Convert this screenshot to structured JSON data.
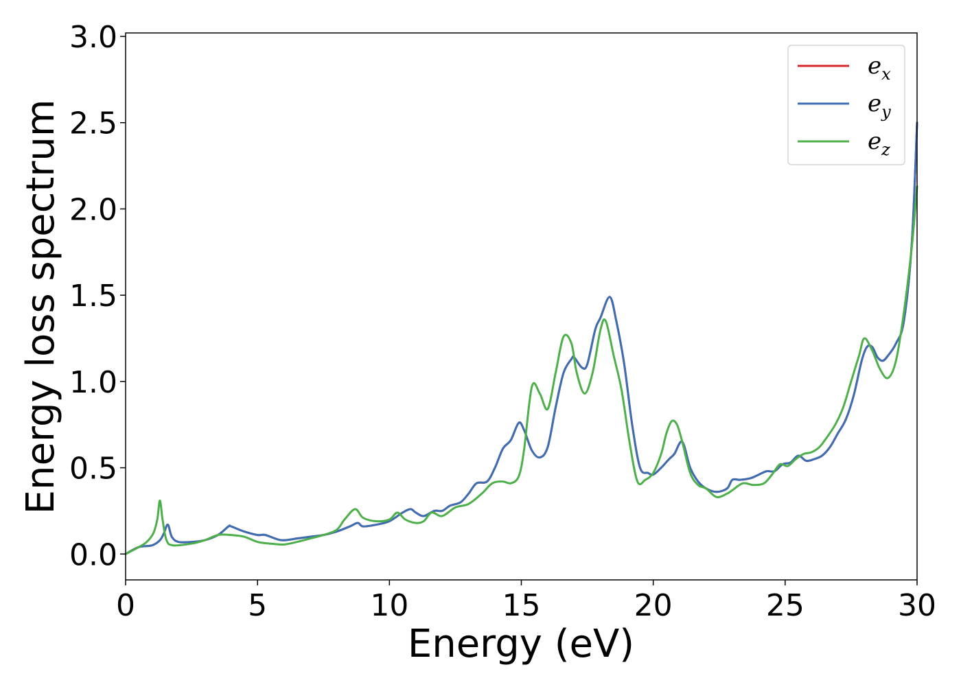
{
  "chart_data": {
    "type": "line",
    "title": "",
    "xlabel": "Energy (eV)",
    "ylabel": "Energy loss spectrum",
    "xlim": [
      0,
      30
    ],
    "ylim": [
      -0.15,
      3.02
    ],
    "xticks": [
      0,
      5,
      10,
      15,
      20,
      25,
      30
    ],
    "xtick_labels": [
      "0",
      "5",
      "10",
      "15",
      "20",
      "25",
      "30"
    ],
    "yticks": [
      0.0,
      0.5,
      1.0,
      1.5,
      2.0,
      2.5,
      3.0
    ],
    "ytick_labels": [
      "0.0",
      "0.5",
      "1.0",
      "1.5",
      "2.0",
      "2.5",
      "3.0"
    ],
    "grid": false,
    "legend_position": "top-right",
    "series": [
      {
        "name": "e_x",
        "legend_base": "e",
        "legend_sub": "x",
        "color": "#d62728",
        "x": [
          0,
          0.5,
          1.0,
          1.3,
          1.45,
          1.6,
          1.75,
          2.0,
          2.5,
          3.0,
          3.5,
          3.9,
          4.0,
          4.5,
          5.0,
          5.3,
          5.9,
          6.5,
          7.0,
          7.5,
          8.0,
          8.5,
          8.8,
          9.0,
          9.5,
          10.0,
          10.5,
          10.8,
          11.0,
          11.3,
          11.7,
          12.0,
          12.3,
          12.7,
          13.0,
          13.3,
          13.7,
          14.0,
          14.3,
          14.6,
          14.9,
          15.1,
          15.4,
          15.7,
          16.0,
          16.3,
          16.6,
          16.9,
          17.0,
          17.3,
          17.5,
          17.8,
          18.0,
          18.35,
          18.6,
          18.9,
          19.2,
          19.5,
          19.8,
          20.0,
          20.3,
          20.6,
          20.8,
          21.1,
          21.4,
          21.7,
          22.0,
          22.4,
          22.8,
          23.0,
          23.3,
          23.7,
          24.0,
          24.3,
          24.6,
          24.9,
          25.2,
          25.5,
          25.8,
          26.1,
          26.4,
          26.7,
          27.0,
          27.3,
          27.6,
          27.9,
          28.1,
          28.3,
          28.5,
          28.7,
          28.9,
          29.2,
          29.5,
          29.8,
          30.0
        ],
        "y": [
          0.0,
          0.04,
          0.05,
          0.08,
          0.12,
          0.17,
          0.1,
          0.07,
          0.07,
          0.08,
          0.11,
          0.16,
          0.16,
          0.13,
          0.11,
          0.11,
          0.08,
          0.09,
          0.1,
          0.11,
          0.13,
          0.16,
          0.18,
          0.16,
          0.17,
          0.19,
          0.24,
          0.26,
          0.24,
          0.22,
          0.25,
          0.25,
          0.28,
          0.3,
          0.35,
          0.41,
          0.42,
          0.5,
          0.61,
          0.66,
          0.76,
          0.72,
          0.6,
          0.56,
          0.62,
          0.85,
          1.05,
          1.13,
          1.14,
          1.08,
          1.1,
          1.3,
          1.37,
          1.49,
          1.35,
          1.1,
          0.75,
          0.5,
          0.47,
          0.46,
          0.5,
          0.55,
          0.58,
          0.65,
          0.5,
          0.42,
          0.38,
          0.36,
          0.38,
          0.43,
          0.43,
          0.44,
          0.46,
          0.48,
          0.48,
          0.52,
          0.53,
          0.57,
          0.54,
          0.55,
          0.57,
          0.62,
          0.7,
          0.78,
          0.92,
          1.12,
          1.2,
          1.2,
          1.14,
          1.12,
          1.15,
          1.22,
          1.35,
          1.8,
          2.5
        ]
      },
      {
        "name": "e_y",
        "legend_base": "e",
        "legend_sub": "y",
        "color": "#3c6eb4",
        "x": [
          0,
          0.5,
          1.0,
          1.3,
          1.45,
          1.6,
          1.75,
          2.0,
          2.5,
          3.0,
          3.5,
          3.9,
          4.0,
          4.5,
          5.0,
          5.3,
          5.9,
          6.5,
          7.0,
          7.5,
          8.0,
          8.5,
          8.8,
          9.0,
          9.5,
          10.0,
          10.5,
          10.8,
          11.0,
          11.3,
          11.7,
          12.0,
          12.3,
          12.7,
          13.0,
          13.3,
          13.7,
          14.0,
          14.3,
          14.6,
          14.9,
          15.1,
          15.4,
          15.7,
          16.0,
          16.3,
          16.6,
          16.9,
          17.0,
          17.3,
          17.5,
          17.8,
          18.0,
          18.35,
          18.6,
          18.9,
          19.2,
          19.5,
          19.8,
          20.0,
          20.3,
          20.6,
          20.8,
          21.1,
          21.4,
          21.7,
          22.0,
          22.4,
          22.8,
          23.0,
          23.3,
          23.7,
          24.0,
          24.3,
          24.6,
          24.9,
          25.2,
          25.5,
          25.8,
          26.1,
          26.4,
          26.7,
          27.0,
          27.3,
          27.6,
          27.9,
          28.1,
          28.3,
          28.5,
          28.7,
          28.9,
          29.2,
          29.5,
          29.8,
          30.0
        ],
        "y": [
          0.0,
          0.04,
          0.05,
          0.08,
          0.12,
          0.17,
          0.1,
          0.07,
          0.07,
          0.08,
          0.11,
          0.16,
          0.16,
          0.13,
          0.11,
          0.11,
          0.08,
          0.09,
          0.1,
          0.11,
          0.13,
          0.16,
          0.18,
          0.16,
          0.17,
          0.19,
          0.24,
          0.26,
          0.24,
          0.22,
          0.25,
          0.25,
          0.28,
          0.3,
          0.35,
          0.41,
          0.42,
          0.5,
          0.61,
          0.66,
          0.76,
          0.72,
          0.6,
          0.56,
          0.62,
          0.85,
          1.05,
          1.13,
          1.14,
          1.08,
          1.1,
          1.3,
          1.37,
          1.49,
          1.35,
          1.1,
          0.75,
          0.5,
          0.47,
          0.46,
          0.5,
          0.55,
          0.58,
          0.65,
          0.5,
          0.42,
          0.38,
          0.36,
          0.38,
          0.43,
          0.43,
          0.44,
          0.46,
          0.48,
          0.48,
          0.52,
          0.53,
          0.57,
          0.54,
          0.55,
          0.57,
          0.62,
          0.7,
          0.78,
          0.92,
          1.12,
          1.2,
          1.2,
          1.14,
          1.12,
          1.15,
          1.22,
          1.35,
          1.8,
          2.5
        ]
      },
      {
        "name": "e_z",
        "legend_base": "e",
        "legend_sub": "z",
        "color": "#4daf4a",
        "x": [
          0,
          0.5,
          0.8,
          1.05,
          1.2,
          1.3,
          1.4,
          1.55,
          1.8,
          2.5,
          3.0,
          3.5,
          4.0,
          4.5,
          5.0,
          5.5,
          6.0,
          6.5,
          7.0,
          7.5,
          8.0,
          8.3,
          8.7,
          9.0,
          9.5,
          10.0,
          10.3,
          10.6,
          11.0,
          11.3,
          11.6,
          12.0,
          12.5,
          13.0,
          13.5,
          13.9,
          14.3,
          14.6,
          14.9,
          15.1,
          15.4,
          15.7,
          16.0,
          16.3,
          16.6,
          16.9,
          17.1,
          17.4,
          17.7,
          18.0,
          18.2,
          18.5,
          18.8,
          19.1,
          19.4,
          19.7,
          20.0,
          20.3,
          20.5,
          20.7,
          20.9,
          21.1,
          21.4,
          21.7,
          22.0,
          22.4,
          22.8,
          23.0,
          23.4,
          23.8,
          24.2,
          24.5,
          24.8,
          25.1,
          25.4,
          25.7,
          26.0,
          26.3,
          26.6,
          26.9,
          27.2,
          27.5,
          27.8,
          28.0,
          28.3,
          28.6,
          28.9,
          29.2,
          29.5,
          29.8,
          30.0
        ],
        "y": [
          0.0,
          0.04,
          0.07,
          0.12,
          0.2,
          0.31,
          0.2,
          0.08,
          0.05,
          0.06,
          0.08,
          0.11,
          0.11,
          0.1,
          0.07,
          0.06,
          0.055,
          0.07,
          0.09,
          0.11,
          0.14,
          0.2,
          0.26,
          0.21,
          0.19,
          0.2,
          0.24,
          0.2,
          0.18,
          0.19,
          0.24,
          0.22,
          0.27,
          0.29,
          0.35,
          0.41,
          0.42,
          0.41,
          0.45,
          0.6,
          0.97,
          0.93,
          0.84,
          1.05,
          1.26,
          1.22,
          1.05,
          0.93,
          1.05,
          1.3,
          1.35,
          1.15,
          0.95,
          0.65,
          0.42,
          0.43,
          0.47,
          0.58,
          0.7,
          0.77,
          0.75,
          0.65,
          0.47,
          0.4,
          0.38,
          0.33,
          0.35,
          0.37,
          0.41,
          0.4,
          0.41,
          0.46,
          0.52,
          0.51,
          0.55,
          0.58,
          0.59,
          0.62,
          0.68,
          0.75,
          0.85,
          1.0,
          1.15,
          1.25,
          1.18,
          1.07,
          1.02,
          1.12,
          1.4,
          1.78,
          2.13
        ]
      }
    ]
  }
}
